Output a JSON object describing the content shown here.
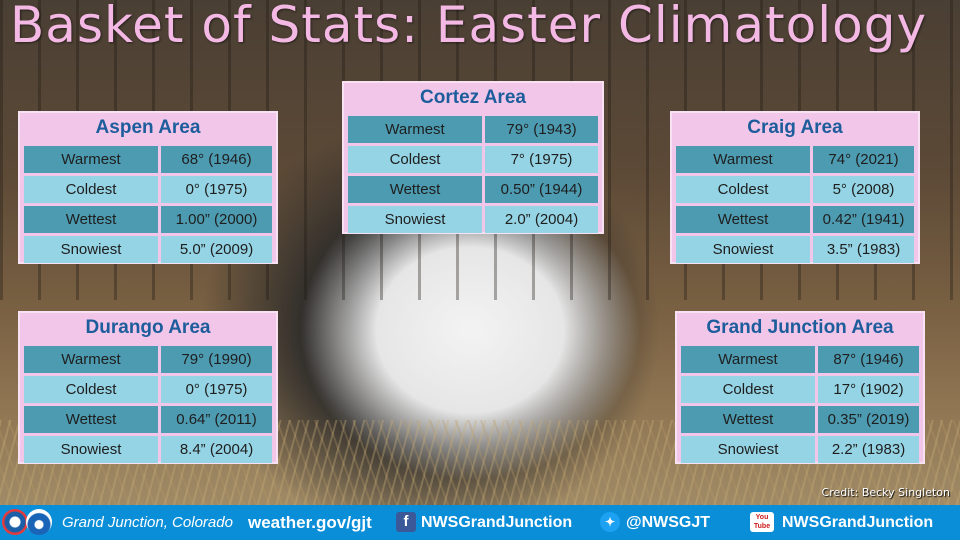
{
  "title": "Basket of Stats: Easter Climatology",
  "credit": "Credit: Becky Singleton",
  "colors": {
    "title": "#f3b8e3",
    "box": "#f2c6e9",
    "box_title": "#1d5d9b",
    "row_dark": "#4d9bb1",
    "row_light": "#95d4e4",
    "footer": "#0b8ed8"
  },
  "areas": [
    {
      "name": "Aspen Area",
      "rows": [
        {
          "label": "Warmest",
          "value": "68° (1946)"
        },
        {
          "label": "Coldest",
          "value": "0° (1975)"
        },
        {
          "label": "Wettest",
          "value": "1.00” (2000)"
        },
        {
          "label": "Snowiest",
          "value": "5.0” (2009)"
        }
      ]
    },
    {
      "name": "Cortez Area",
      "rows": [
        {
          "label": "Warmest",
          "value": "79° (1943)"
        },
        {
          "label": "Coldest",
          "value": "7° (1975)"
        },
        {
          "label": "Wettest",
          "value": "0.50” (1944)"
        },
        {
          "label": "Snowiest",
          "value": "2.0” (2004)"
        }
      ]
    },
    {
      "name": "Craig Area",
      "rows": [
        {
          "label": "Warmest",
          "value": "74° (2021)"
        },
        {
          "label": "Coldest",
          "value": "5° (2008)"
        },
        {
          "label": "Wettest",
          "value": "0.42” (1941)"
        },
        {
          "label": "Snowiest",
          "value": "3.5” (1983)"
        }
      ]
    },
    {
      "name": "Durango Area",
      "rows": [
        {
          "label": "Warmest",
          "value": "79° (1990)"
        },
        {
          "label": "Coldest",
          "value": "0° (1975)"
        },
        {
          "label": "Wettest",
          "value": "0.64” (2011)"
        },
        {
          "label": "Snowiest",
          "value": "8.4” (2004)"
        }
      ]
    },
    {
      "name": "Grand Junction Area",
      "rows": [
        {
          "label": "Warmest",
          "value": "87° (1946)"
        },
        {
          "label": "Coldest",
          "value": "17° (1902)"
        },
        {
          "label": "Wettest",
          "value": "0.35” (2019)"
        },
        {
          "label": "Snowiest",
          "value": "2.2” (1983)"
        }
      ]
    }
  ],
  "footer": {
    "location": "Grand Junction, Colorado",
    "website": "weather.gov/gjt",
    "facebook": "NWSGrandJunction",
    "twitter": "@NWSGJT",
    "youtube": "NWSGrandJunction",
    "youtube_icon_text": "You Tube",
    "icons": [
      "noaa-logo-icon",
      "nws-logo-icon",
      "facebook-icon",
      "twitter-icon",
      "youtube-icon"
    ]
  }
}
